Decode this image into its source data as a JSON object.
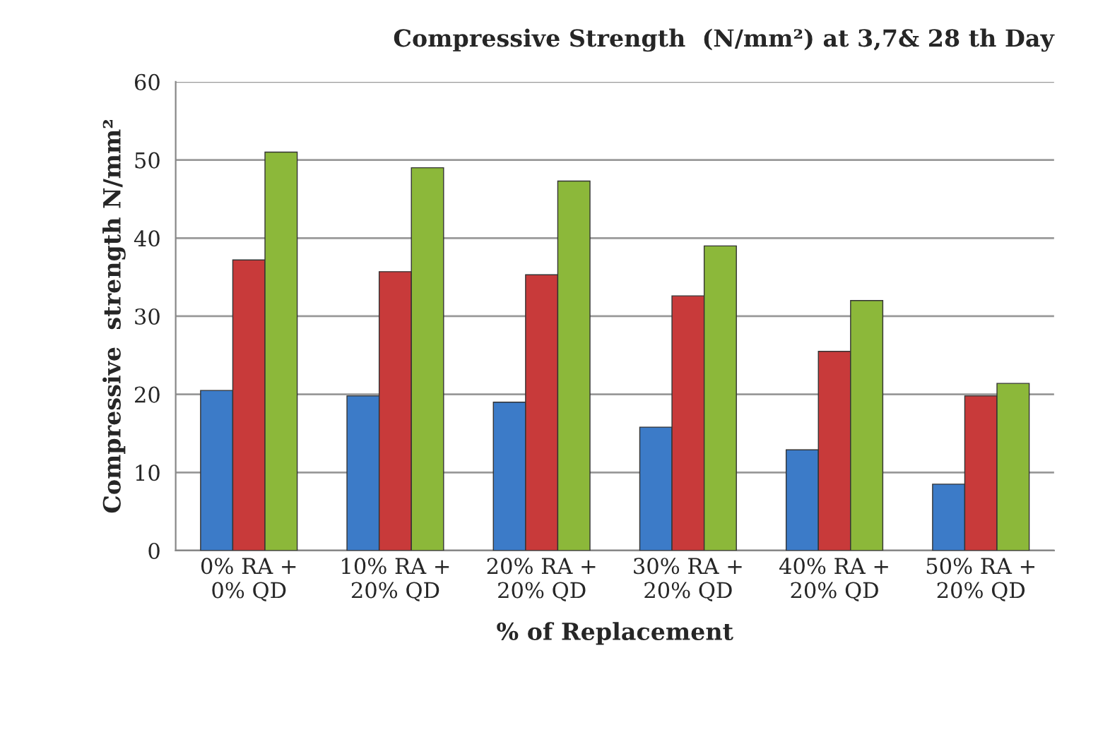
{
  "chart_data": {
    "type": "bar",
    "title": "Compressive Strength  (N/mm²) at 3,7& 28 th Day",
    "xlabel": "% of Replacement",
    "ylabel": "Compressive  strength N/mm²",
    "categories": [
      "0% RA +\n0% QD",
      "10% RA +\n20% QD",
      "20% RA +\n20% QD",
      "30% RA +\n20% QD",
      "40% RA +\n20% QD",
      "50% RA +\n20% QD"
    ],
    "series": [
      {
        "color": "#3c7bc8",
        "values": [
          20.5,
          19.8,
          19.0,
          15.8,
          12.9,
          8.5
        ]
      },
      {
        "color": "#c83a3a",
        "values": [
          37.2,
          35.7,
          35.3,
          32.6,
          25.5,
          19.8
        ]
      },
      {
        "color": "#8cb83a",
        "values": [
          51.0,
          49.0,
          47.3,
          39.0,
          32.0,
          21.4
        ]
      }
    ],
    "ylim": [
      0,
      60
    ],
    "yticks": [
      0,
      10,
      20,
      30,
      40,
      50,
      60
    ],
    "grid": "y"
  }
}
